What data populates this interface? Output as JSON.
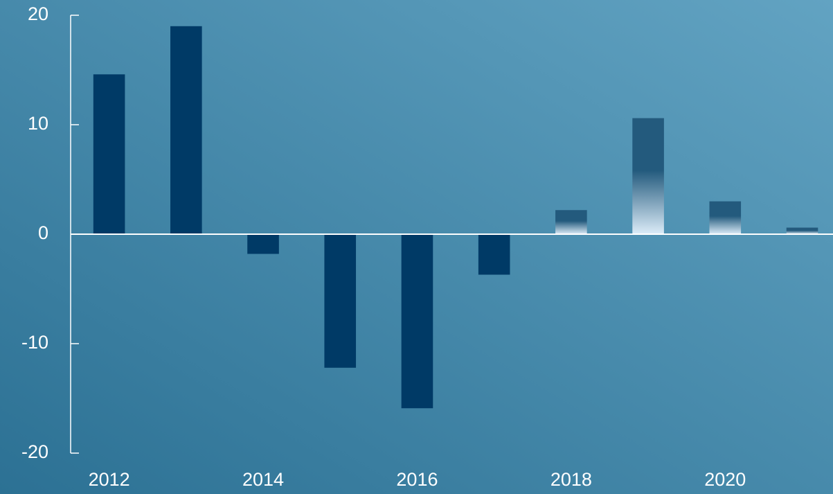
{
  "chart_data": {
    "type": "bar",
    "x": [
      2012,
      2013,
      2014,
      2015,
      2016,
      2017,
      2018,
      2019,
      2020,
      2021
    ],
    "values": [
      14.6,
      19.0,
      -1.8,
      -12.2,
      -15.9,
      -3.7,
      2.2,
      10.6,
      3.0,
      0.6
    ],
    "color": "#003a66",
    "colors": [
      "#003a66",
      "#003a66",
      "#003a66",
      "#003a66",
      "#003a66",
      "#003a66",
      "#235a7d",
      "#235a7d",
      "#235a7d",
      "#235a7d"
    ],
    "xlim": [
      2011.5,
      2021.4
    ],
    "xticks": [
      2012,
      2014,
      2016,
      2018,
      2020
    ],
    "ylim": [
      -20,
      20
    ],
    "yticks": [
      -20,
      -10,
      0,
      10,
      20
    ]
  }
}
